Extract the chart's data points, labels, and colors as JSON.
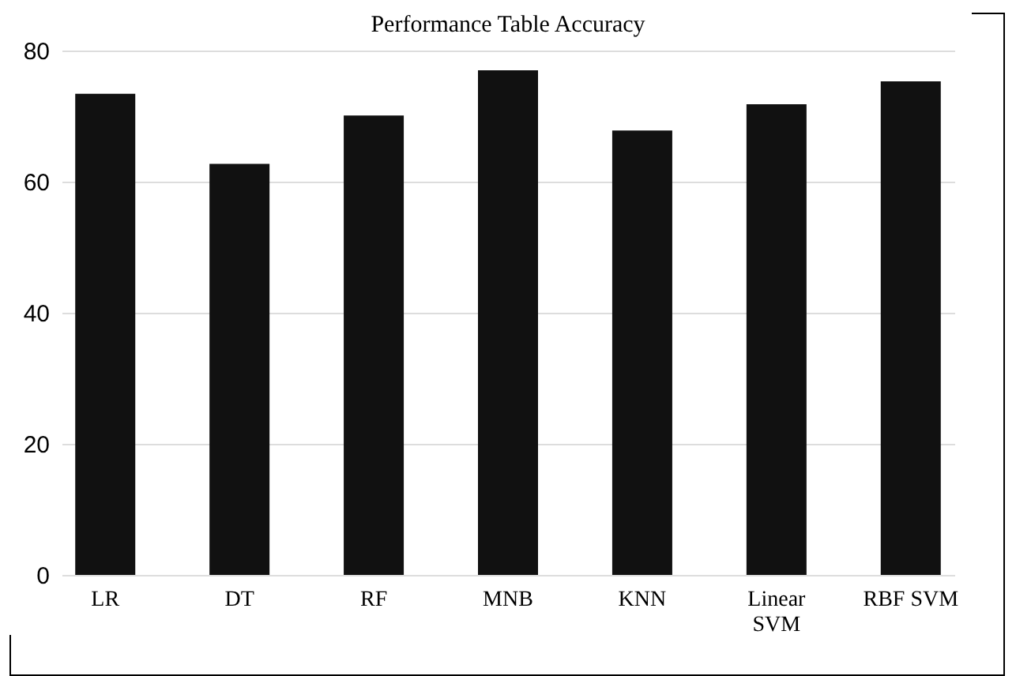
{
  "chart_data": {
    "type": "bar",
    "title": "Performance Table Accuracy",
    "categories": [
      "LR",
      "DT",
      "RF",
      "MNB",
      "KNN",
      "Linear SVM",
      "RBF SVM"
    ],
    "values": [
      73.4,
      62.7,
      70.1,
      77.0,
      67.8,
      71.8,
      75.3
    ],
    "color": "#111111",
    "ylim": [
      0,
      80
    ],
    "yticks": [
      0,
      20,
      40,
      60,
      80
    ],
    "grid": "y"
  }
}
